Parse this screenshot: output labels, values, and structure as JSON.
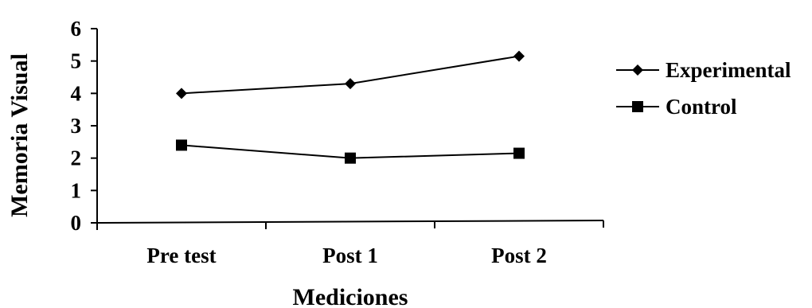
{
  "chart_data": {
    "type": "line",
    "xlabel": "Mediciones",
    "ylabel": "Memoria Visual",
    "categories": [
      "Pre test",
      "Post 1",
      "Post 2"
    ],
    "ylim": [
      0,
      6
    ],
    "yticks": [
      "0",
      "1",
      "2",
      "3",
      "4",
      "5",
      "6"
    ],
    "grid": false,
    "legend_position": "right",
    "series": [
      {
        "name": "Experimental",
        "marker": "diamond",
        "color": "#000000",
        "values": [
          4.0,
          4.3,
          5.15
        ]
      },
      {
        "name": "Control",
        "marker": "square",
        "color": "#000000",
        "values": [
          2.4,
          2.0,
          2.15
        ]
      }
    ]
  }
}
